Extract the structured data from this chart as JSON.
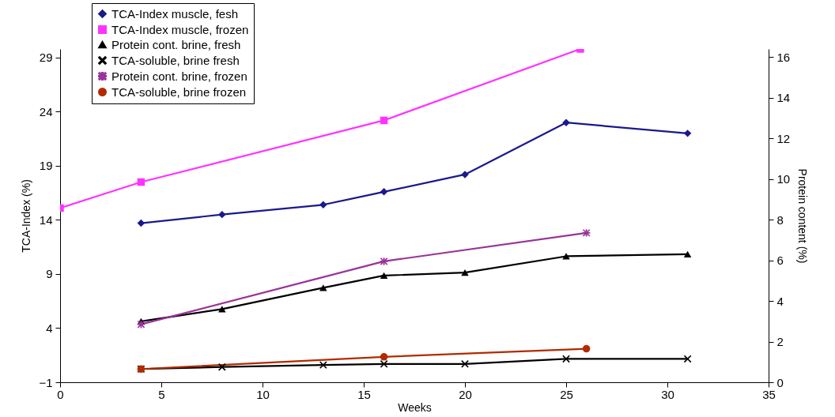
{
  "chart_data": {
    "type": "line",
    "xlabel": "Weeks",
    "ylabel": "TCA-Index  (%)",
    "y2label": "Protein  content  (%)",
    "xlim": [
      0,
      35
    ],
    "xticks": [
      0,
      5,
      10,
      15,
      20,
      25,
      30,
      35
    ],
    "ylim": [
      -1,
      29.8
    ],
    "yticks": [
      -1,
      4,
      9,
      14,
      19,
      24,
      29
    ],
    "y2lim": [
      0,
      16.4
    ],
    "y2ticks": [
      0,
      2,
      4,
      6,
      8,
      10,
      12,
      14,
      16
    ],
    "grid": false,
    "legend": "top left",
    "line_style": "solid",
    "series": [
      {
        "name": "TCA-Index muscle, fesh",
        "color": "#1a1a8c",
        "marker": "diamond",
        "x": [
          4,
          8,
          13,
          16,
          20,
          25,
          31
        ],
        "values": [
          13.7,
          14.5,
          15.4,
          16.6,
          18.2,
          23.0,
          22.0
        ]
      },
      {
        "name": "TCA-Index muscle, frozen",
        "color": "#ff33ff",
        "marker": "square",
        "x": [
          0,
          4,
          16,
          25.7
        ],
        "values": [
          15.1,
          17.5,
          23.2,
          29.8
        ]
      },
      {
        "name": "Protein cont. brine, fresh",
        "color": "#000000",
        "marker": "triangle",
        "axis": "y2",
        "x": [
          4,
          8,
          13,
          16,
          20,
          25,
          31
        ],
        "values": [
          3.0,
          3.6,
          4.65,
          5.25,
          5.4,
          6.2,
          6.3
        ]
      },
      {
        "name": "TCA-soluble, brine fresh",
        "color": "#000000",
        "marker": "cross",
        "axis": "y2",
        "x": [
          4,
          8,
          13,
          16,
          20,
          25,
          31
        ],
        "values": [
          0.65,
          0.75,
          0.85,
          0.9,
          0.9,
          1.15,
          1.15
        ]
      },
      {
        "name": "Protein cont. brine, frozen",
        "color": "#993399",
        "marker": "star",
        "axis": "y2",
        "x": [
          4,
          16,
          26
        ],
        "values": [
          2.85,
          5.95,
          7.35
        ]
      },
      {
        "name": "TCA-soluble, brine frozen",
        "color": "#b22a00",
        "marker": "circle",
        "axis": "y2",
        "x": [
          4,
          16,
          26
        ],
        "values": [
          0.65,
          1.25,
          1.65
        ]
      }
    ]
  }
}
